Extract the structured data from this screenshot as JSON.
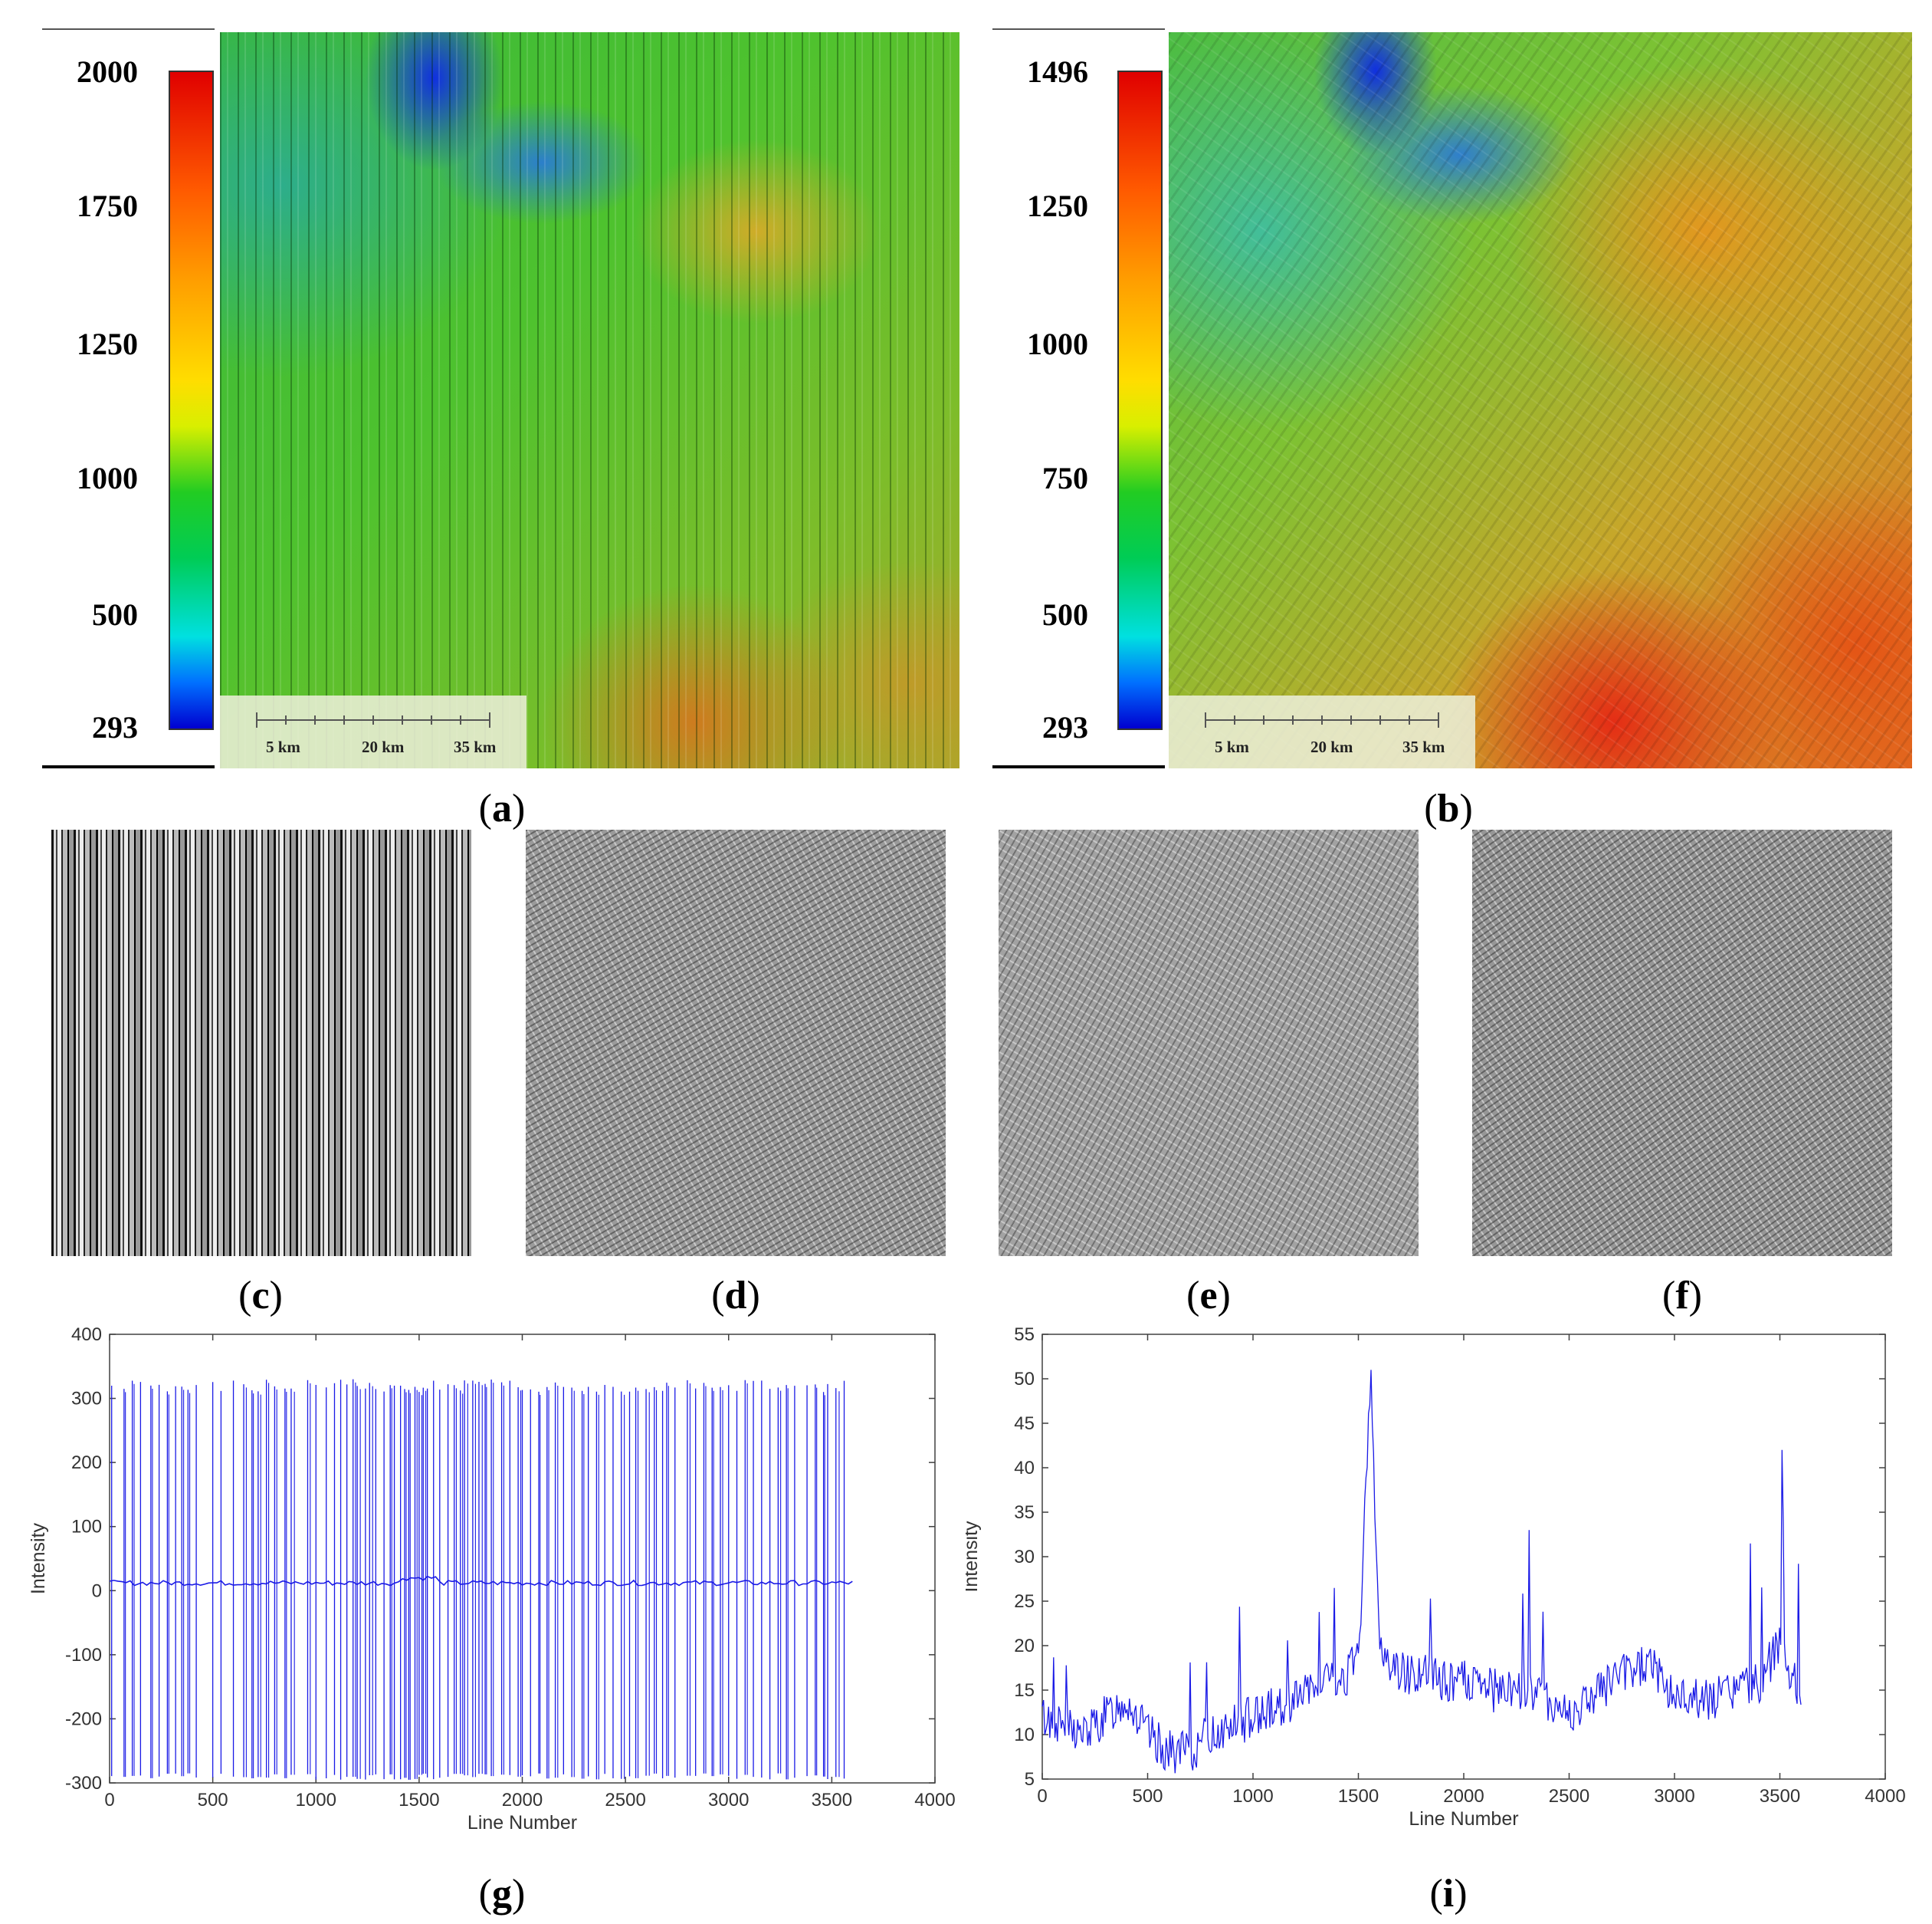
{
  "panels": {
    "a": "a",
    "b": "b",
    "c": "c",
    "d": "d",
    "e": "e",
    "f": "f",
    "g": "g",
    "i": "i"
  },
  "colorbar_a": {
    "ticks": [
      "2000",
      "1750",
      "1250",
      "1000",
      "500",
      "293"
    ],
    "values": [
      2000,
      1750,
      1250,
      1000,
      500,
      293
    ]
  },
  "colorbar_b": {
    "ticks": [
      "1496",
      "1250",
      "1000",
      "750",
      "500",
      "293"
    ],
    "values": [
      1496,
      1250,
      1000,
      750,
      500,
      293
    ]
  },
  "scalebar": {
    "labels": [
      "5 km",
      "20 km",
      "35 km"
    ]
  },
  "colors": {
    "line": "#1a1ae6",
    "axis": "#404040"
  },
  "chart_data": [
    {
      "id": "g",
      "type": "line",
      "title": "",
      "xlabel": "Line Number",
      "ylabel": "Intensity",
      "xlim": [
        0,
        4000
      ],
      "ylim": [
        -300,
        400
      ],
      "xticks": [
        0,
        500,
        1000,
        1500,
        2000,
        2500,
        3000,
        3500,
        4000
      ],
      "yticks": [
        -300,
        -200,
        -100,
        0,
        100,
        200,
        300,
        400
      ],
      "baseline": 12,
      "spike_high": 320,
      "spike_low": -290,
      "x_range": [
        0,
        3600
      ],
      "spikes_approx_x": [
        10,
        70,
        110,
        150,
        200,
        240,
        280,
        320,
        350,
        380,
        420,
        500,
        540,
        600,
        650,
        690,
        720,
        760,
        800,
        850,
        880,
        960,
        1000,
        1050,
        1090,
        1120,
        1150,
        1180,
        1200,
        1240,
        1260,
        1290,
        1330,
        1360,
        1380,
        1410,
        1430,
        1450,
        1480,
        1500,
        1520,
        1540,
        1570,
        1600,
        1640,
        1670,
        1700,
        1720,
        1760,
        1790,
        1820,
        1850,
        1900,
        1940,
        1980,
        2000,
        2040,
        2080,
        2120,
        2160,
        2200,
        2240,
        2290,
        2320,
        2360,
        2400,
        2440,
        2480,
        2520,
        2550,
        2600,
        2640,
        2680,
        2700,
        2740,
        2800,
        2840,
        2880,
        2920,
        2960,
        3000,
        3040,
        3080,
        3120,
        3160,
        3200,
        3240,
        3280,
        3320,
        3380,
        3420,
        3460,
        3480,
        3520,
        3560
      ]
    },
    {
      "id": "i",
      "type": "line",
      "title": "",
      "xlabel": "Line Number",
      "ylabel": "Intensity",
      "xlim": [
        0,
        4000
      ],
      "ylim": [
        5,
        55
      ],
      "xticks": [
        0,
        500,
        1000,
        1500,
        2000,
        2500,
        3000,
        3500,
        4000
      ],
      "yticks": [
        5,
        10,
        15,
        20,
        25,
        30,
        35,
        40,
        45,
        50,
        55
      ],
      "x": [
        0,
        100,
        200,
        300,
        400,
        500,
        600,
        700,
        800,
        900,
        1000,
        1100,
        1200,
        1300,
        1400,
        1500,
        1560,
        1600,
        1700,
        1800,
        1900,
        2000,
        2100,
        2200,
        2300,
        2400,
        2500,
        2600,
        2700,
        2800,
        2900,
        3000,
        3100,
        3200,
        3300,
        3400,
        3500,
        3600
      ],
      "values": [
        12,
        11,
        10,
        12,
        14,
        10,
        8,
        8,
        10,
        11,
        12,
        13,
        14,
        15,
        16,
        18,
        51,
        19,
        17,
        17,
        16,
        16,
        15,
        15,
        15,
        14,
        12,
        14,
        16,
        17,
        18,
        14,
        14,
        14,
        15,
        16,
        20,
        15
      ]
    }
  ]
}
